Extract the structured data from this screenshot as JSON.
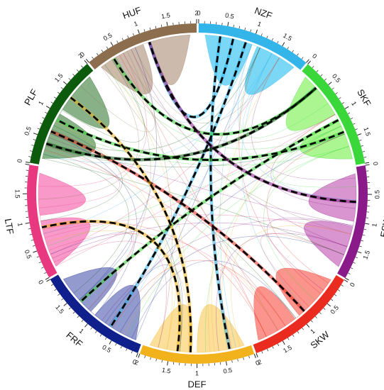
{
  "chart_data": {
    "type": "chord",
    "segments": [
      {
        "name": "NZF",
        "color": "#33b5ea",
        "fill": "#73d6f6",
        "value": 2.0,
        "tick_labels": [
          "0",
          "0.5",
          "1",
          "1.5"
        ]
      },
      {
        "name": "SKF",
        "color": "#3ad73a",
        "fill": "#a6f68a",
        "value": 2.0,
        "tick_labels": [
          "0",
          "0.5",
          "1",
          "1.5"
        ]
      },
      {
        "name": "ESW",
        "color": "#8a1a8a",
        "fill": "#d68fcc",
        "value": 2.0,
        "tick_labels": [
          "0",
          "0.5",
          "1",
          "1.5"
        ]
      },
      {
        "name": "SKW",
        "color": "#ea2b1f",
        "fill": "#fb8e86",
        "value": 2.0,
        "tick_labels": [
          "0",
          "0.5",
          "1",
          "1.5",
          "2"
        ]
      },
      {
        "name": "DEF",
        "color": "#f2b21c",
        "fill": "#fcdd95",
        "value": 2.0,
        "tick_labels": [
          "0",
          "0.5",
          "1",
          "1.5",
          "2"
        ]
      },
      {
        "name": "FRF",
        "color": "#0f1f8c",
        "fill": "#8d95cb",
        "value": 2.0,
        "tick_labels": [
          "0",
          "0.5",
          "1",
          "1.5"
        ]
      },
      {
        "name": "LTF",
        "color": "#e8387f",
        "fill": "#f894c6",
        "value": 2.0,
        "tick_labels": [
          "0",
          "0.5",
          "1",
          "1.5"
        ]
      },
      {
        "name": "PLF",
        "color": "#0c5a0c",
        "fill": "#82ad82",
        "value": 2.0,
        "tick_labels": [
          "0",
          "0.5",
          "1",
          "1.5",
          "2"
        ]
      },
      {
        "name": "HUF",
        "color": "#8c6d4d",
        "fill": "#c9b6a8",
        "value": 2.0,
        "tick_labels": [
          "0",
          "0.5",
          "1",
          "1.5",
          "2"
        ]
      }
    ],
    "highlighted_links": [
      {
        "from": "NZF",
        "to": "DEF"
      },
      {
        "from": "NZF",
        "to": "HUF"
      },
      {
        "from": "NZF",
        "to": "FRF"
      },
      {
        "from": "SKF",
        "to": "FRF"
      },
      {
        "from": "SKF",
        "to": "PLF"
      },
      {
        "from": "SKF",
        "to": "HUF"
      },
      {
        "from": "ESW",
        "to": "HUF"
      },
      {
        "from": "SKW",
        "to": "PLF"
      },
      {
        "from": "DEF",
        "to": "PLF"
      },
      {
        "from": "DEF",
        "to": "LTF"
      },
      {
        "from": "PLF",
        "to": "SKF"
      }
    ]
  }
}
